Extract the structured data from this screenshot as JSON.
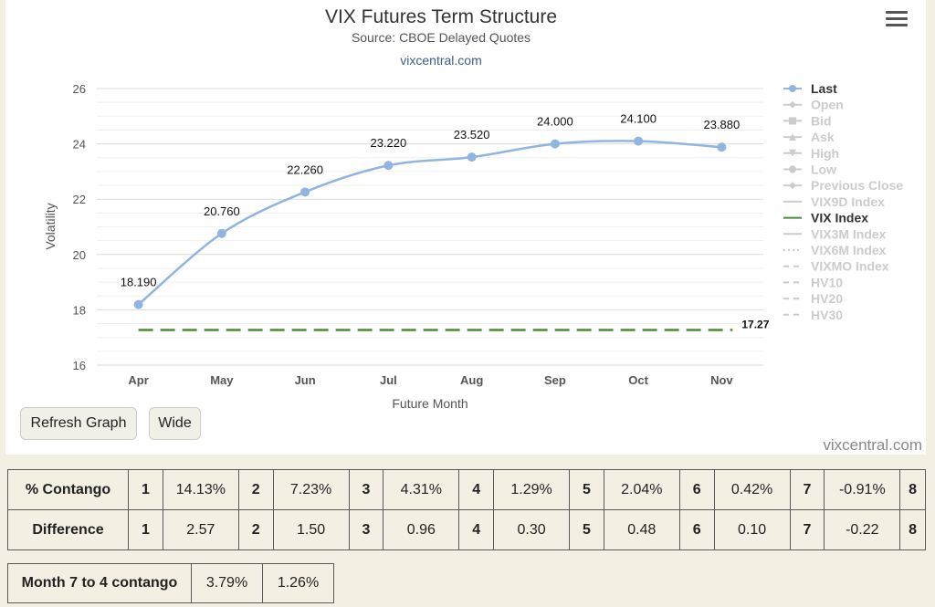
{
  "chart_data": {
    "type": "line",
    "title": "VIX Futures Term Structure",
    "subtitle": "Source: CBOE Delayed Quotes",
    "credit": "vixcentral.com",
    "xlabel": "Future Month",
    "ylabel": "Volatility",
    "categories": [
      "Apr",
      "May",
      "Jun",
      "Jul",
      "Aug",
      "Sep",
      "Oct",
      "Nov"
    ],
    "ylim": [
      16,
      26
    ],
    "yticks": [
      "16",
      "18",
      "20",
      "22",
      "24",
      "26"
    ],
    "series": [
      {
        "name": "Last",
        "color": "#8fb5e0",
        "values": [
          18.19,
          20.76,
          22.26,
          23.22,
          23.52,
          24.0,
          24.1,
          23.88
        ],
        "labels": [
          "18.190",
          "20.760",
          "22.260",
          "23.220",
          "23.520",
          "24.000",
          "24.100",
          "23.880"
        ]
      },
      {
        "name": "VIX Index",
        "color": "#4a8a3a",
        "value": 17.27,
        "label": "17.27"
      }
    ],
    "legend": [
      {
        "name": "Last",
        "active": true,
        "symbol": "circle-line"
      },
      {
        "name": "Open",
        "active": false,
        "symbol": "diamond-line"
      },
      {
        "name": "Bid",
        "active": false,
        "symbol": "square-line"
      },
      {
        "name": "Ask",
        "active": false,
        "symbol": "triangle-line"
      },
      {
        "name": "High",
        "active": false,
        "symbol": "triangle-down-line"
      },
      {
        "name": "Low",
        "active": false,
        "symbol": "circle-line"
      },
      {
        "name": "Previous Close",
        "active": false,
        "symbol": "diamond-line"
      },
      {
        "name": "VIX9D Index",
        "active": false,
        "symbol": "line"
      },
      {
        "name": "VIX Index",
        "active": true,
        "symbol": "line"
      },
      {
        "name": "VIX3M Index",
        "active": false,
        "symbol": "line"
      },
      {
        "name": "VIX6M Index",
        "active": false,
        "symbol": "dotted"
      },
      {
        "name": "VIXMO Index",
        "active": false,
        "symbol": "dashed"
      },
      {
        "name": "HV10",
        "active": false,
        "symbol": "dashed"
      },
      {
        "name": "HV20",
        "active": false,
        "symbol": "dashed"
      },
      {
        "name": "HV30",
        "active": false,
        "symbol": "dashed"
      }
    ],
    "legend_position": "right",
    "grid": true
  },
  "buttons": {
    "refresh": "Refresh Graph",
    "wide": "Wide"
  },
  "credit_bottom": "vixcentral.com",
  "contango_table": {
    "rows": [
      {
        "label": "% Contango",
        "cells": [
          {
            "idx": "1",
            "val": "14.13%"
          },
          {
            "idx": "2",
            "val": "7.23%"
          },
          {
            "idx": "3",
            "val": "4.31%"
          },
          {
            "idx": "4",
            "val": "1.29%"
          },
          {
            "idx": "5",
            "val": "2.04%"
          },
          {
            "idx": "6",
            "val": "0.42%"
          },
          {
            "idx": "7",
            "val": "-0.91%"
          }
        ],
        "last_idx": "8"
      },
      {
        "label": "Difference",
        "cells": [
          {
            "idx": "1",
            "val": "2.57"
          },
          {
            "idx": "2",
            "val": "1.50"
          },
          {
            "idx": "3",
            "val": "0.96"
          },
          {
            "idx": "4",
            "val": "0.30"
          },
          {
            "idx": "5",
            "val": "0.48"
          },
          {
            "idx": "6",
            "val": "0.10"
          },
          {
            "idx": "7",
            "val": "-0.22"
          }
        ],
        "last_idx": "8"
      }
    ]
  },
  "month_table": {
    "label": "Month 7 to 4 contango",
    "values": [
      "3.79%",
      "1.26%"
    ]
  }
}
